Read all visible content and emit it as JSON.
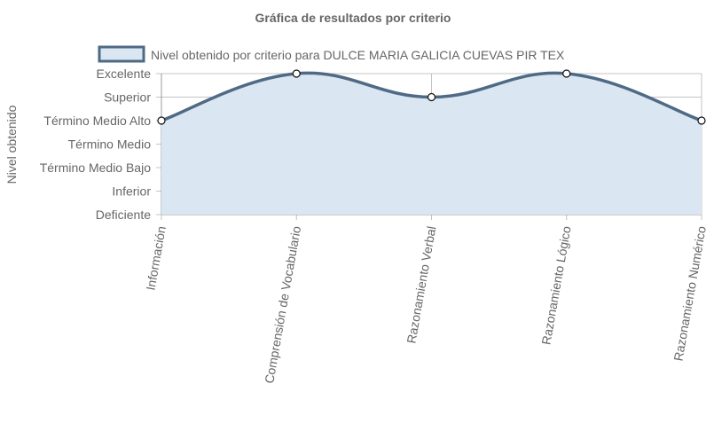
{
  "chart_data": {
    "type": "area",
    "title": "Gráfica de resultados por criterio",
    "ylabel": "Nivel obtenido",
    "xlabel": "",
    "categories": [
      "Información",
      "Comprensión de Vocabulario",
      "Razonamiento Verbal",
      "Razonamiento Lógico",
      "Razonamiento Numérico"
    ],
    "y_levels": [
      "Deficiente",
      "Inferior",
      "Término Medio Bajo",
      "Término Medio",
      "Término Medio Alto",
      "Superior",
      "Excelente"
    ],
    "series": [
      {
        "name": "Nivel obtenido por criterio para DULCE MARIA GALICIA CUEVAS PIR TEX",
        "values": [
          "Término Medio Alto",
          "Excelente",
          "Superior",
          "Excelente",
          "Término Medio Alto"
        ],
        "line_color": "#4f6a85",
        "fill_color": "#dae6f1"
      }
    ],
    "grid": true,
    "legend_position": "top"
  }
}
